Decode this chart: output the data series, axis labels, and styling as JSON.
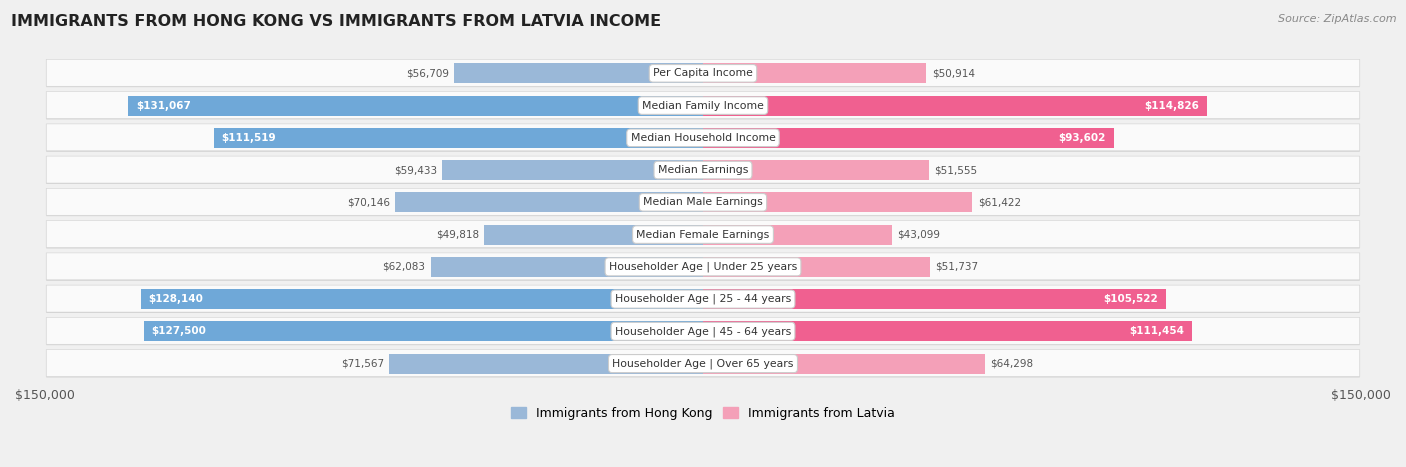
{
  "title": "IMMIGRANTS FROM HONG KONG VS IMMIGRANTS FROM LATVIA INCOME",
  "source": "Source: ZipAtlas.com",
  "categories": [
    "Per Capita Income",
    "Median Family Income",
    "Median Household Income",
    "Median Earnings",
    "Median Male Earnings",
    "Median Female Earnings",
    "Householder Age | Under 25 years",
    "Householder Age | 25 - 44 years",
    "Householder Age | 45 - 64 years",
    "Householder Age | Over 65 years"
  ],
  "hong_kong_values": [
    56709,
    131067,
    111519,
    59433,
    70146,
    49818,
    62083,
    128140,
    127500,
    71567
  ],
  "latvia_values": [
    50914,
    114826,
    93602,
    51555,
    61422,
    43099,
    51737,
    105522,
    111454,
    64298
  ],
  "hong_kong_labels": [
    "$56,709",
    "$131,067",
    "$111,519",
    "$59,433",
    "$70,146",
    "$49,818",
    "$62,083",
    "$128,140",
    "$127,500",
    "$71,567"
  ],
  "latvia_labels": [
    "$50,914",
    "$114,826",
    "$93,602",
    "$51,555",
    "$61,422",
    "$43,099",
    "$51,737",
    "$105,522",
    "$111,454",
    "$64,298"
  ],
  "hong_kong_color": "#9ab8d8",
  "latvia_color": "#f4a0b8",
  "hong_kong_color_strong": "#6fa8d8",
  "latvia_color_strong": "#f06090",
  "x_max": 150000,
  "legend_hong_kong": "Immigrants from Hong Kong",
  "legend_latvia": "Immigrants from Latvia",
  "background_color": "#f0f0f0",
  "row_bg": "#fafafa",
  "row_border": "#d8d8d8"
}
